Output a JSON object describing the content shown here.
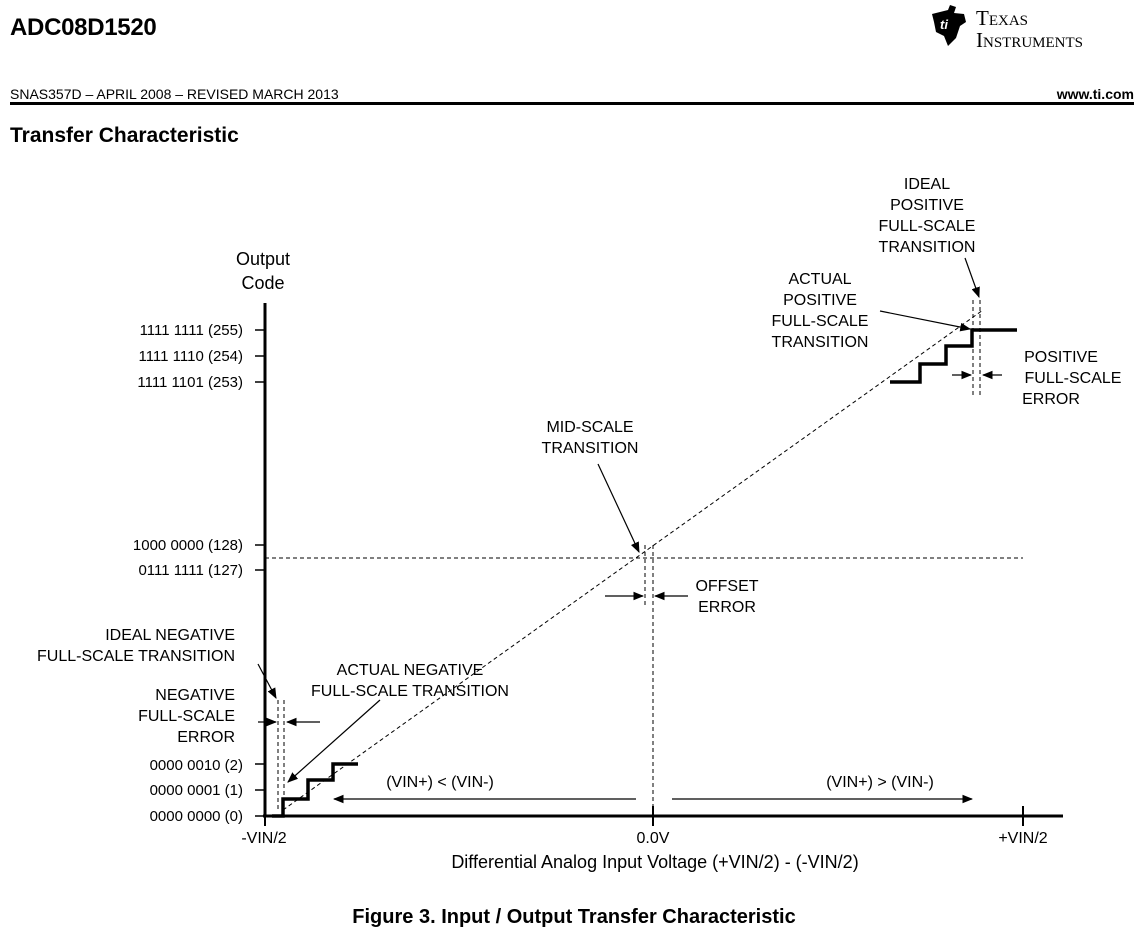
{
  "header": {
    "part_number": "ADC08D1520",
    "doc_line": "SNAS357D – APRIL 2008 – REVISED MARCH 2013",
    "url": "www.ti.com",
    "logo": {
      "line1": "Texas",
      "line2": "Instruments",
      "icon": "ti-logo-icon"
    }
  },
  "section_title": "Transfer Characteristic",
  "figure": {
    "caption": "Figure 3.  Input / Output Transfer Characteristic",
    "y_axis_title": [
      "Output",
      "Code"
    ],
    "x_axis_title": "Differential Analog Input Voltage (+VIN/2) - (-VIN/2)",
    "y_ticks": [
      "1111 1111 (255)",
      "1111 1110 (254)",
      "1111 1101 (253)",
      "1000 0000 (128)",
      "0111 1111 (127)",
      "0000 0010 (2)",
      "0000 0001 (1)",
      "0000 0000 (0)"
    ],
    "x_ticks": [
      "-VIN/2",
      "0.0V",
      "+VIN/2"
    ],
    "region_labels": [
      "(VIN+) < (VIN-)",
      "(VIN+) > (VIN-)"
    ],
    "annotations": {
      "ideal_positive": [
        "IDEAL",
        "POSITIVE",
        "FULL-SCALE",
        "TRANSITION"
      ],
      "actual_positive": [
        "ACTUAL",
        "POSITIVE",
        "FULL-SCALE",
        "TRANSITION"
      ],
      "positive_error": [
        "POSITIVE",
        "FULL-SCALE",
        "ERROR"
      ],
      "mid_scale": [
        "MID-SCALE",
        "TRANSITION"
      ],
      "offset_error": [
        "OFFSET",
        "ERROR"
      ],
      "ideal_negative": [
        "IDEAL NEGATIVE",
        "FULL-SCALE TRANSITION"
      ],
      "negative_error": [
        "NEGATIVE",
        "FULL-SCALE",
        "ERROR"
      ],
      "actual_negative": [
        "ACTUAL NEGATIVE",
        "FULL-SCALE TRANSITION"
      ]
    }
  }
}
